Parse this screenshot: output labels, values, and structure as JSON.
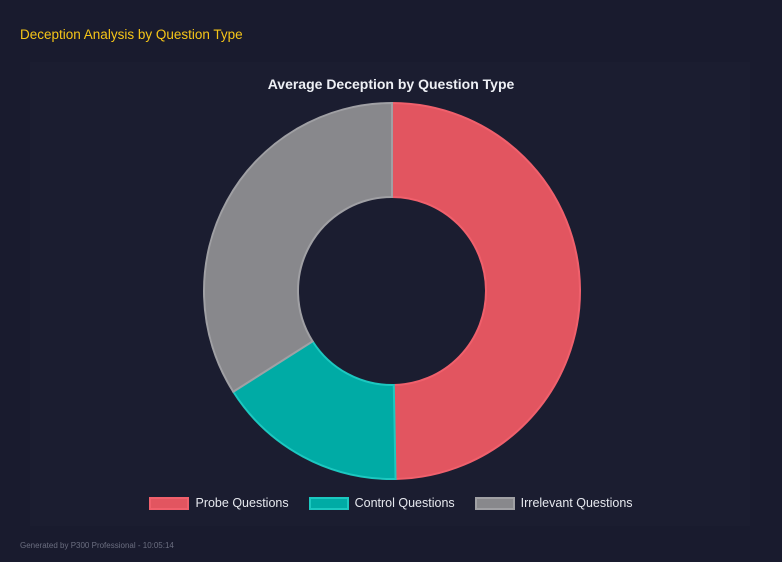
{
  "heading": "Deception Analysis by Question Type",
  "footer": "Generated by P300 Professional - 10:05:14",
  "chart_data": {
    "type": "doughnut",
    "title": "Average Deception by Question Type",
    "categories": [
      "Probe Questions",
      "Control Questions",
      "Irrelevant Questions"
    ],
    "values": [
      49.7,
      16.3,
      34.0
    ],
    "colors": [
      "#e25560",
      "#00aba5",
      "#88888c"
    ],
    "border_colors": [
      "#f0606c",
      "#1cc8c0",
      "#a0a0a4"
    ],
    "legend": "bottom"
  }
}
